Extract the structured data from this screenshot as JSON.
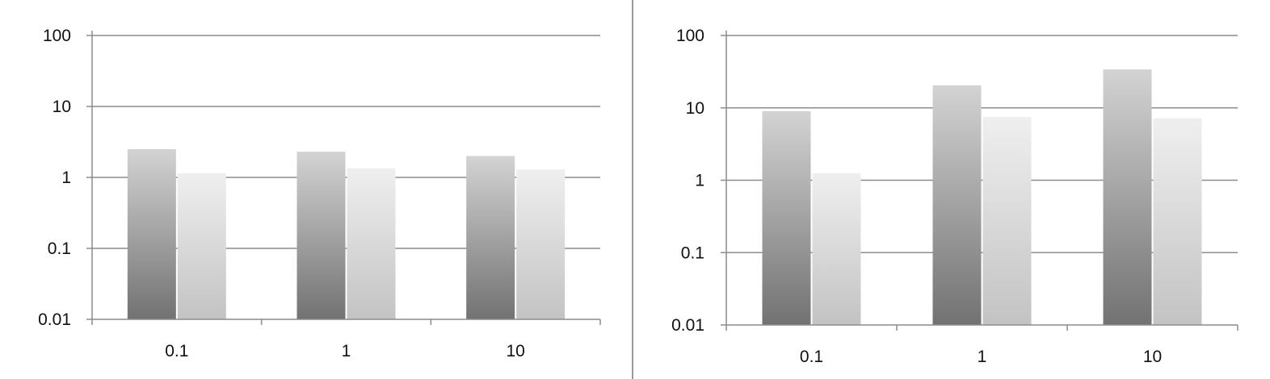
{
  "chart_data": [
    {
      "type": "bar",
      "yscale": "log",
      "ylim": [
        0.01,
        100
      ],
      "yticks": [
        "0.01",
        "0.1",
        "1",
        "10",
        "100"
      ],
      "categories": [
        "0.1",
        "1",
        "10"
      ],
      "grid": true,
      "legend": "none",
      "series": [
        {
          "values": [
            2.5,
            2.3,
            2.0
          ]
        },
        {
          "values": [
            1.15,
            1.35,
            1.3
          ]
        }
      ]
    },
    {
      "type": "bar",
      "yscale": "log",
      "ylim": [
        0.01,
        100
      ],
      "yticks": [
        "0.01",
        "0.1",
        "1",
        "10",
        "100"
      ],
      "categories": [
        "0.1",
        "1",
        "10"
      ],
      "grid": true,
      "legend": "none",
      "series": [
        {
          "values": [
            9.0,
            20.5,
            34.0
          ]
        },
        {
          "values": [
            1.25,
            7.5,
            7.2
          ]
        }
      ]
    }
  ]
}
